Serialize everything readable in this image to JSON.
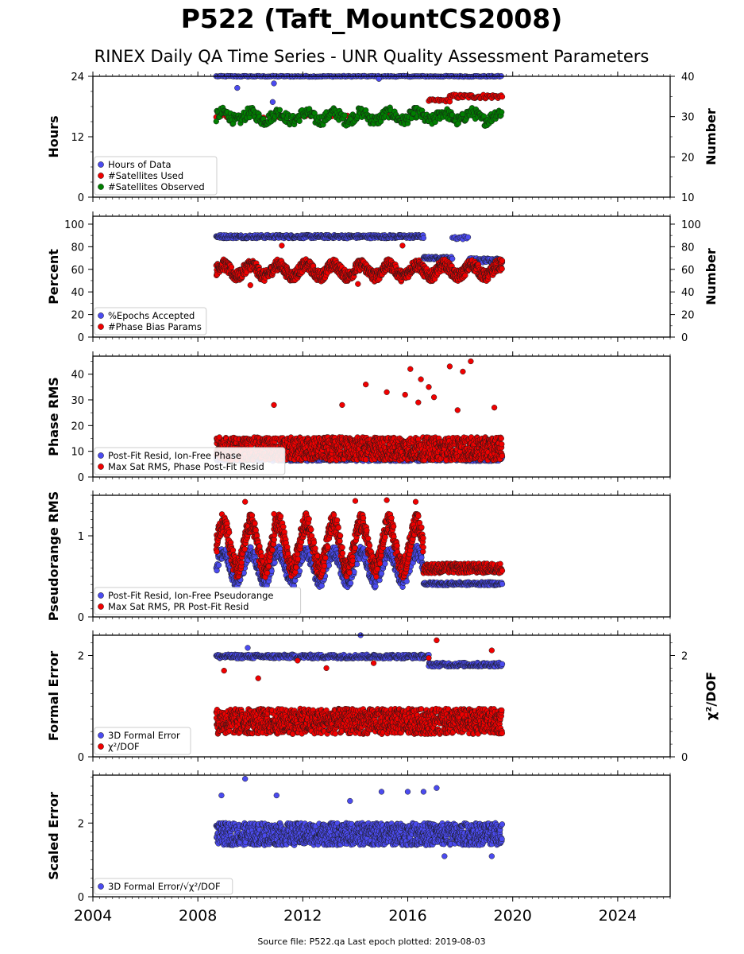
{
  "title": "P522 (Taft_MountCS2008)",
  "subtitle": "RINEX Daily QA Time Series - UNR Quality Assessment Parameters",
  "footer": "Source file: P522.qa Last epoch plotted: 2019-08-03",
  "colors": {
    "blue": "#4b4bef",
    "red": "#f00000",
    "green": "#008000"
  },
  "chart_data": [
    {
      "type": "scatter",
      "ylabel": "Hours",
      "ylim": [
        0,
        24
      ],
      "yticks": [
        0,
        12,
        24
      ],
      "y2label": "Number",
      "y2lim": [
        10,
        40
      ],
      "y2ticks": [
        10,
        20,
        30,
        40
      ],
      "xlim": [
        2004,
        2026
      ],
      "xticks": [
        2004,
        2008,
        2012,
        2016,
        2020,
        2024
      ],
      "legend": "lower-left",
      "series": [
        {
          "name": "Hours of Data",
          "color": "blue",
          "axis": "left",
          "segments": [
            {
              "x0": 2008.7,
              "x1": 2019.6,
              "y": 24,
              "spread": 0.1,
              "step": 0.06
            }
          ],
          "outliers": [
            {
              "x": 2009.5,
              "y": 21.7
            },
            {
              "x": 2010.9,
              "y": 22.6
            },
            {
              "x": 2010.85,
              "y": 18.9
            },
            {
              "x": 2014.9,
              "y": 23.5
            }
          ]
        },
        {
          "name": "#Satellites Used",
          "color": "red",
          "axis": "right",
          "segments": [
            {
              "x0": 2008.7,
              "x1": 2016.7,
              "y": 30,
              "spread": 0.3,
              "step": 0.2
            },
            {
              "x0": 2016.8,
              "x1": 2017.6,
              "y": 34,
              "spread": 0.3,
              "step": 0.05
            },
            {
              "x0": 2017.6,
              "x1": 2019.6,
              "y": 35,
              "spread": 0.5,
              "step": 0.04
            }
          ],
          "outliers": [
            {
              "x": 2009.6,
              "y": 30.1
            }
          ]
        },
        {
          "name": "#Satellites Observed",
          "color": "green",
          "axis": "right",
          "segments": [
            {
              "x0": 2008.7,
              "x1": 2019.6,
              "y": 30,
              "spread": 1.3,
              "step": 0.025,
              "wave": 1.0
            }
          ],
          "outliers": []
        }
      ]
    },
    {
      "type": "scatter",
      "ylabel": "Percent",
      "ylim": [
        0,
        107
      ],
      "yticks": [
        0,
        20,
        40,
        60,
        80,
        100
      ],
      "y2label": "Number",
      "y2lim": [
        0,
        107
      ],
      "y2ticks": [
        0,
        20,
        40,
        60,
        80,
        100
      ],
      "xlim": [
        2004,
        2026
      ],
      "xticks": [
        2004,
        2008,
        2012,
        2016,
        2020,
        2024
      ],
      "legend": "lower-left",
      "series": [
        {
          "name": "%Epochs Accepted",
          "color": "blue",
          "axis": "left",
          "segments": [
            {
              "x0": 2008.7,
              "x1": 2016.6,
              "y": 89,
              "spread": 1.5,
              "step": 0.02
            },
            {
              "x0": 2016.6,
              "x1": 2017.7,
              "y": 70,
              "spread": 1.2,
              "step": 0.02
            },
            {
              "x0": 2017.7,
              "x1": 2018.3,
              "y": 88,
              "spread": 1.5,
              "step": 0.05
            },
            {
              "x0": 2018.3,
              "x1": 2019.6,
              "y": 68,
              "spread": 2.0,
              "step": 0.02
            }
          ],
          "outliers": []
        },
        {
          "name": "#Phase Bias Params",
          "color": "red",
          "axis": "right",
          "segments": [
            {
              "x0": 2008.7,
              "x1": 2019.6,
              "y": 59,
              "spread": 5,
              "step": 0.01,
              "wave": 5
            }
          ],
          "outliers": [
            {
              "x": 2014.1,
              "y": 47
            },
            {
              "x": 2015.8,
              "y": 81
            },
            {
              "x": 2011.2,
              "y": 81
            },
            {
              "x": 2010.0,
              "y": 46
            }
          ]
        }
      ]
    },
    {
      "type": "scatter",
      "ylabel": "Phase RMS",
      "ylim": [
        0,
        47
      ],
      "yticks": [
        0,
        10,
        20,
        30,
        40
      ],
      "xlim": [
        2004,
        2026
      ],
      "xticks": [
        2004,
        2008,
        2012,
        2016,
        2020,
        2024
      ],
      "legend": "lower-left",
      "series": [
        {
          "name": "Post-Fit Resid, Ion-Free Phase",
          "color": "blue",
          "axis": "left",
          "segments": [
            {
              "x0": 2008.7,
              "x1": 2019.6,
              "y": 7,
              "spread": 0.8,
              "step": 0.02
            }
          ],
          "outliers": []
        },
        {
          "name": "Max Sat RMS, Phase Post-Fit Resid",
          "color": "red",
          "axis": "left",
          "segments": [
            {
              "x0": 2008.7,
              "x1": 2019.6,
              "y": 11,
              "spread": 4.5,
              "step": 0.008
            }
          ],
          "outliers": [
            {
              "x": 2014.4,
              "y": 36
            },
            {
              "x": 2015.2,
              "y": 33
            },
            {
              "x": 2016.1,
              "y": 42
            },
            {
              "x": 2016.5,
              "y": 38
            },
            {
              "x": 2016.8,
              "y": 35
            },
            {
              "x": 2017.0,
              "y": 31
            },
            {
              "x": 2017.6,
              "y": 43
            },
            {
              "x": 2018.1,
              "y": 41
            },
            {
              "x": 2018.4,
              "y": 45
            },
            {
              "x": 2016.4,
              "y": 29
            },
            {
              "x": 2010.9,
              "y": 28
            },
            {
              "x": 2013.5,
              "y": 28
            },
            {
              "x": 2019.3,
              "y": 27
            },
            {
              "x": 2017.9,
              "y": 26
            },
            {
              "x": 2015.9,
              "y": 32
            }
          ]
        }
      ]
    },
    {
      "type": "scatter",
      "ylabel": "Pseudorange RMS",
      "ylim": [
        0,
        1.5
      ],
      "yticks": [
        0,
        1
      ],
      "xlim": [
        2004,
        2026
      ],
      "xticks": [
        2004,
        2008,
        2012,
        2016,
        2020,
        2024
      ],
      "legend": "lower-left",
      "series": [
        {
          "name": "Post-Fit Resid, Ion-Free Pseudorange",
          "color": "blue",
          "axis": "left",
          "segments": [
            {
              "x0": 2008.7,
              "x1": 2016.6,
              "y": 0.62,
              "spread": 0.08,
              "step": 0.012,
              "wave": 0.18
            },
            {
              "x0": 2016.6,
              "x1": 2019.6,
              "y": 0.41,
              "spread": 0.02,
              "step": 0.02
            }
          ],
          "outliers": []
        },
        {
          "name": "Max Sat RMS, PR Post-Fit Resid",
          "color": "red",
          "axis": "left",
          "segments": [
            {
              "x0": 2008.7,
              "x1": 2016.6,
              "y": 0.88,
              "spread": 0.12,
              "step": 0.008,
              "wave": 0.28
            },
            {
              "x0": 2016.6,
              "x1": 2019.6,
              "y": 0.6,
              "spread": 0.06,
              "step": 0.012
            }
          ],
          "outliers": [
            {
              "x": 2009.8,
              "y": 1.42
            },
            {
              "x": 2014.0,
              "y": 1.43
            },
            {
              "x": 2015.2,
              "y": 1.44
            },
            {
              "x": 2016.3,
              "y": 1.42
            },
            {
              "x": 2010.9,
              "y": 1.27
            }
          ]
        }
      ]
    },
    {
      "type": "scatter",
      "ylabel": "Formal Error",
      "ylim": [
        0,
        2.4
      ],
      "yticks": [
        0,
        2
      ],
      "y2label": "χ²/DOF",
      "y2lim": [
        0,
        2.4
      ],
      "y2ticks": [
        0,
        2
      ],
      "xlim": [
        2004,
        2026
      ],
      "xticks": [
        2004,
        2008,
        2012,
        2016,
        2020,
        2024
      ],
      "legend": "lower-left",
      "series": [
        {
          "name": "3D Formal Error",
          "color": "blue",
          "axis": "left",
          "segments": [
            {
              "x0": 2008.7,
              "x1": 2016.8,
              "y": 1.98,
              "spread": 0.04,
              "step": 0.02
            },
            {
              "x0": 2016.8,
              "x1": 2019.6,
              "y": 1.82,
              "spread": 0.04,
              "step": 0.02
            }
          ],
          "outliers": [
            {
              "x": 2014.2,
              "y": 2.4
            },
            {
              "x": 2009.9,
              "y": 2.15
            }
          ]
        },
        {
          "name": "χ²/DOF",
          "color": "red",
          "axis": "right",
          "segments": [
            {
              "x0": 2008.7,
              "x1": 2019.6,
              "y": 0.7,
              "spread": 0.25,
              "step": 0.008
            }
          ],
          "outliers": [
            {
              "x": 2017.1,
              "y": 2.3
            },
            {
              "x": 2009.0,
              "y": 1.7
            },
            {
              "x": 2012.9,
              "y": 1.75
            },
            {
              "x": 2011.8,
              "y": 1.9
            },
            {
              "x": 2014.7,
              "y": 1.85
            },
            {
              "x": 2016.8,
              "y": 1.95
            },
            {
              "x": 2019.2,
              "y": 2.1
            },
            {
              "x": 2010.3,
              "y": 1.55
            }
          ]
        }
      ]
    },
    {
      "type": "scatter",
      "ylabel": "Scaled Error",
      "ylim": [
        0,
        3.3
      ],
      "yticks": [
        0,
        2
      ],
      "xlim": [
        2004,
        2026
      ],
      "xticks": [
        2004,
        2008,
        2012,
        2016,
        2020,
        2024
      ],
      "legend": "lower-left",
      "series": [
        {
          "name": "3D Formal Error/√χ²/DOF",
          "color": "blue",
          "axis": "left",
          "segments": [
            {
              "x0": 2008.7,
              "x1": 2019.6,
              "y": 1.7,
              "spread": 0.3,
              "step": 0.008
            }
          ],
          "outliers": [
            {
              "x": 2009.8,
              "y": 3.2
            },
            {
              "x": 2008.9,
              "y": 2.75
            },
            {
              "x": 2017.1,
              "y": 2.95
            },
            {
              "x": 2015.0,
              "y": 2.85
            },
            {
              "x": 2016.0,
              "y": 2.85
            },
            {
              "x": 2016.6,
              "y": 2.85
            },
            {
              "x": 2013.8,
              "y": 2.6
            },
            {
              "x": 2017.4,
              "y": 1.1
            },
            {
              "x": 2019.2,
              "y": 1.1
            },
            {
              "x": 2011.0,
              "y": 2.75
            }
          ]
        }
      ]
    }
  ]
}
